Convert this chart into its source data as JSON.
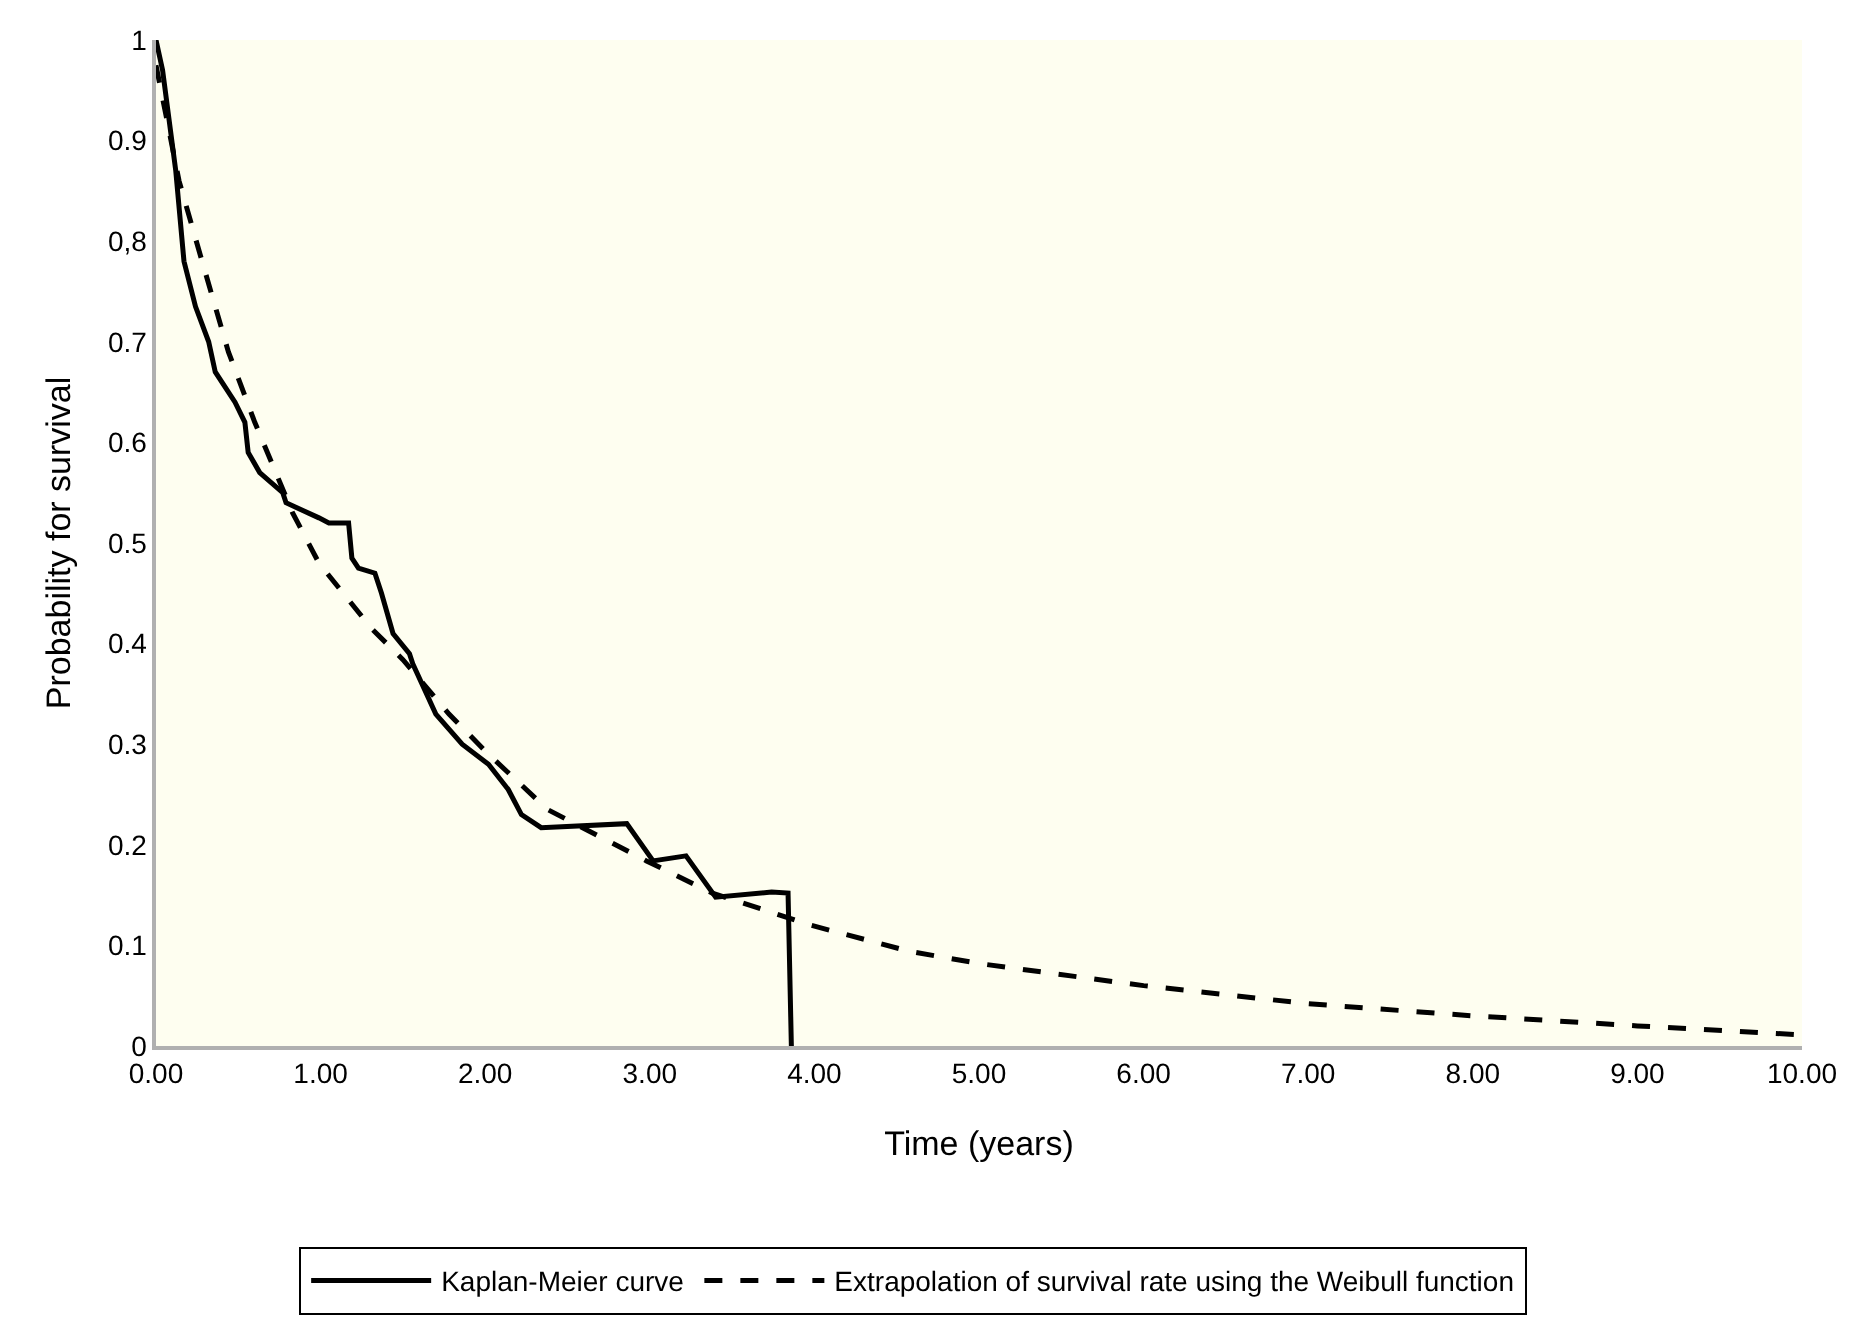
{
  "chart_data": {
    "type": "line",
    "xlabel": "Time (years)",
    "ylabel": "Probability for survival",
    "xlim": [
      0,
      10
    ],
    "ylim": [
      0,
      1
    ],
    "xticks": [
      {
        "value": 0,
        "label": "0.00"
      },
      {
        "value": 1,
        "label": "1.00"
      },
      {
        "value": 2,
        "label": "2.00"
      },
      {
        "value": 3,
        "label": "3.00"
      },
      {
        "value": 4,
        "label": "4.00"
      },
      {
        "value": 5,
        "label": "5.00"
      },
      {
        "value": 6,
        "label": "6.00"
      },
      {
        "value": 7,
        "label": "7.00"
      },
      {
        "value": 8,
        "label": "8.00"
      },
      {
        "value": 9,
        "label": "9.00"
      },
      {
        "value": 10,
        "label": "10.00"
      }
    ],
    "yticks": [
      0,
      0.1,
      0.2,
      0.3,
      0.4,
      0.5,
      0.6,
      0.7,
      {
        "value": 0.8,
        "label": "0,8"
      },
      0.9,
      1
    ],
    "grid": false,
    "legend": "bottom",
    "marker": "none",
    "series": [
      {
        "name": "Kaplan-Meier curve",
        "color": "#000000",
        "line_style": "solid",
        "x": [
          0,
          0.04,
          0.12,
          0.17,
          0.24,
          0.32,
          0.36,
          0.48,
          0.54,
          0.56,
          0.63,
          0.77,
          0.79,
          0.99,
          1.05,
          1.17,
          1.19,
          1.23,
          1.33,
          1.37,
          1.44,
          1.54,
          1.56,
          1.7,
          1.86,
          2.02,
          2.14,
          2.22,
          2.34,
          2.86,
          3.02,
          3.22,
          3.4,
          3.74,
          3.84,
          3.86
        ],
        "values": [
          1.0,
          0.97,
          0.87,
          0.78,
          0.735,
          0.7,
          0.67,
          0.64,
          0.62,
          0.59,
          0.57,
          0.55,
          0.54,
          0.525,
          0.52,
          0.52,
          0.485,
          0.475,
          0.47,
          0.45,
          0.41,
          0.39,
          0.38,
          0.33,
          0.3,
          0.28,
          0.255,
          0.23,
          0.217,
          0.221,
          0.184,
          0.189,
          0.148,
          0.153,
          0.152,
          0
        ]
      },
      {
        "name": "Extrapolation of survival rate using the Weibull function",
        "color": "#000000",
        "line_style": "dashed",
        "x": [
          0,
          0.14,
          0.28,
          0.44,
          0.6,
          0.83,
          0.99,
          1.31,
          1.5,
          1.78,
          2.02,
          2.38,
          2.98,
          3.38,
          3.98,
          4.58,
          5,
          6,
          7,
          8,
          9,
          10
        ],
        "values": [
          0.975,
          0.86,
          0.78,
          0.69,
          0.62,
          0.53,
          0.48,
          0.415,
          0.384,
          0.33,
          0.29,
          0.235,
          0.184,
          0.152,
          0.12,
          0.094,
          0.082,
          0.06,
          0.042,
          0.03,
          0.02,
          0.011
        ]
      }
    ]
  }
}
